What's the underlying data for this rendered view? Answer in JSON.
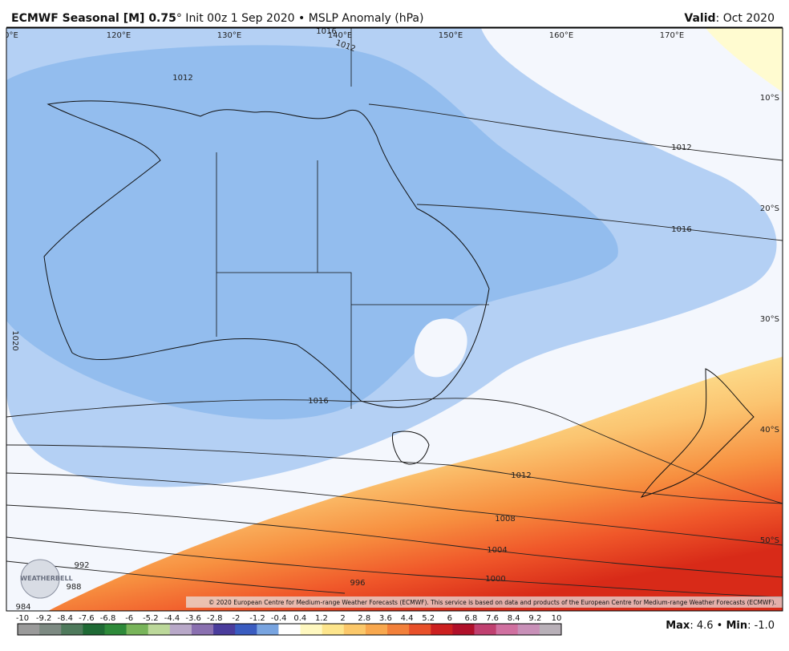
{
  "header": {
    "title_bold": "ECMWF Seasonal [M] 0.75",
    "title_rest": "° Init 00z 1 Sep 2020 • MSLP Anomaly (hPa)",
    "valid_label": "Valid",
    "valid_value": ": Oct 2020"
  },
  "map": {
    "lon_labels": [
      "0°E",
      "120°E",
      "130°E",
      "140°E",
      "150°E",
      "160°E",
      "170°E"
    ],
    "lat_labels": [
      "10°S",
      "20°S",
      "30°S",
      "40°S",
      "50°S"
    ],
    "contour_labels": [
      "1016",
      "1012",
      "1012",
      "1012",
      "1016",
      "1020",
      "1016",
      "1012",
      "1008",
      "1004",
      "1000",
      "996",
      "992",
      "988",
      "984"
    ],
    "logo": "WEATHERBELL",
    "copyright": "© 2020 European Centre for Medium-range Weather Forecasts (ECMWF). This service is based on data and products of the European Centre for Medium-range Weather Forecasts (ECMWF)."
  },
  "colorbar": {
    "ticks": [
      -10,
      -9.2,
      -8.4,
      -7.6,
      -6.8,
      -6,
      -5.2,
      -4.4,
      -3.6,
      -2.8,
      -2,
      -1.2,
      -0.4,
      0.4,
      1.2,
      2,
      2.8,
      3.6,
      4.4,
      5.2,
      6,
      6.8,
      7.6,
      8.4,
      9.2,
      10
    ],
    "colors": [
      "#9a9a9a",
      "#7d8a82",
      "#4f7a5c",
      "#1f6a35",
      "#2e8a3a",
      "#78b45a",
      "#bcd89a",
      "#b8a8c8",
      "#8a70b0",
      "#4a3c9c",
      "#3a5cc0",
      "#78a4e0",
      "#ffffff",
      "#fff8c0",
      "#fde58c",
      "#fbc86a",
      "#f8a84e",
      "#f2803a",
      "#e8502a",
      "#cc2020",
      "#b0102a",
      "#c04070",
      "#d070a0",
      "#c890b8",
      "#b8b0b8"
    ]
  },
  "footer": {
    "max_label": "Max",
    "max_value": ": 4.6 • ",
    "min_label": "Min",
    "min_value": ": -1.0"
  }
}
